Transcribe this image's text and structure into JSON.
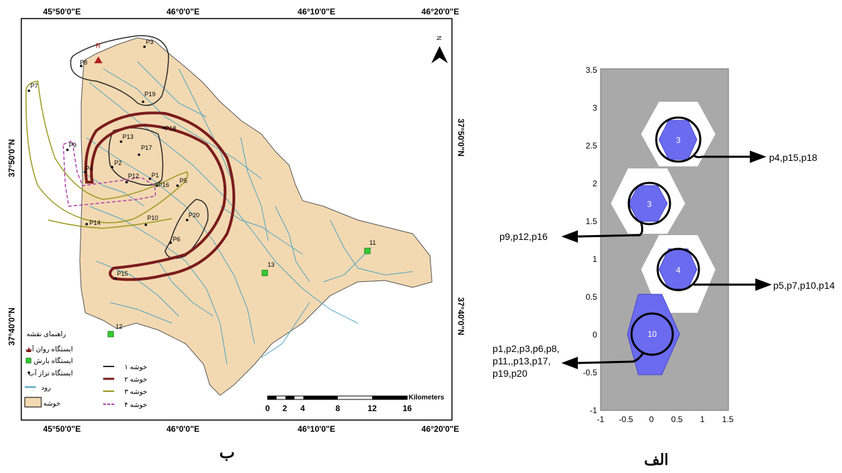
{
  "map": {
    "panel_caption": "ب",
    "top_lon_labels": [
      "45°50'0\"E",
      "46°0'0\"E",
      "46°10'0\"E",
      "46°20'0\"E"
    ],
    "bottom_lon_labels": [
      "45°50'0\"E",
      "46°0'0\"E",
      "46°10'0\"E",
      "46°20'0\"E"
    ],
    "left_lat_labels": [
      "37°50'0\"N",
      "37°40'0\"N"
    ],
    "right_lat_labels": [
      "37°50'0\"N",
      "37°40'0\"N"
    ],
    "north_label": "N",
    "runoff_station_label": "R",
    "rain_station_labels": [
      "11",
      "13",
      "12"
    ],
    "piezometer_labels": [
      "P3",
      "P8",
      "P7",
      "P19",
      "P18",
      "P13",
      "P17",
      "P9",
      "P4",
      "P2",
      "P12",
      "P1",
      "P16",
      "P5",
      "P20",
      "P10",
      "P14",
      "P6",
      "P15"
    ],
    "scale": {
      "unit": "Kilometers",
      "ticks": [
        "0",
        "2",
        "4",
        "8",
        "12",
        "16"
      ]
    },
    "legend": {
      "title": "راهنمای نقشه",
      "items": [
        {
          "label": "ایستگاه روان آب",
          "symbol": "triangle",
          "color": "#b22222"
        },
        {
          "label": "ایستگاه بارش",
          "symbol": "square",
          "color": "#33cc33"
        },
        {
          "label": "ایستگاه تراز آب",
          "symbol": "dot",
          "color": "#000000"
        },
        {
          "label": "رود",
          "symbol": "line",
          "color": "#4fa3c2"
        },
        {
          "label": "خوشه",
          "symbol": "box",
          "color": "#f3d9b1"
        }
      ],
      "cluster_items": [
        {
          "label": "خوشه ۱",
          "color": "#2b2b2b"
        },
        {
          "label": "خوشه ۲",
          "color": "#7a1c1c"
        },
        {
          "label": "خوشه ۳",
          "color": "#9a9a20"
        },
        {
          "label": "خوشه ۴",
          "color": "#b040b0"
        }
      ]
    }
  },
  "som": {
    "panel_caption": "الف",
    "y_ticks": [
      "3.5",
      "3",
      "2.5",
      "2",
      "1.5",
      "1",
      "0.5",
      "0",
      "-0.5",
      "-1"
    ],
    "x_ticks": [
      "-1",
      "-0.5",
      "0",
      "0.5",
      "1",
      "1.5"
    ],
    "nodes": [
      {
        "label": "3",
        "x": 0.5,
        "y": 2.55,
        "members": "p4,p15,p18"
      },
      {
        "label": "3",
        "x": 0.0,
        "y": 1.8,
        "members": "p9,p12,p16"
      },
      {
        "label": "4",
        "x": 0.5,
        "y": 1.05,
        "members": "p5,p7,p10,p14"
      },
      {
        "label": "10",
        "x": 0.0,
        "y": 0.3,
        "members_lines": [
          "p1,p2,p3,p6,p8,",
          "p11,,p13,p17,",
          "p19,p20"
        ]
      }
    ]
  }
}
